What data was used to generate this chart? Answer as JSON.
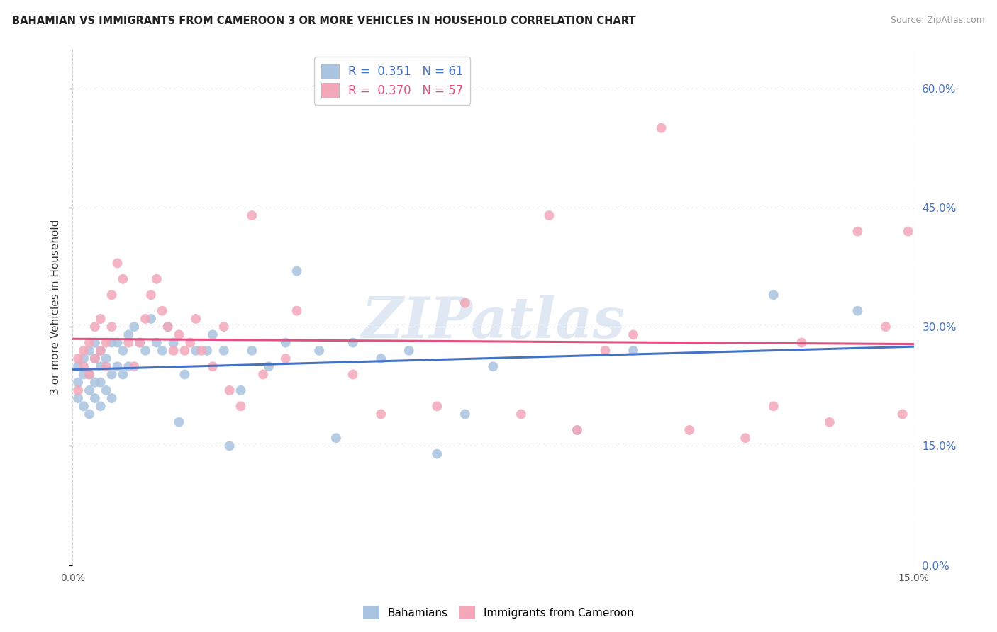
{
  "title": "BAHAMIAN VS IMMIGRANTS FROM CAMEROON 3 OR MORE VEHICLES IN HOUSEHOLD CORRELATION CHART",
  "source": "Source: ZipAtlas.com",
  "ylabel": "3 or more Vehicles in Household",
  "legend_blue_label": "Bahamians",
  "legend_pink_label": "Immigrants from Cameroon",
  "R_blue": "0.351",
  "N_blue": "61",
  "R_pink": "0.370",
  "N_pink": "57",
  "blue_color": "#a8c4e0",
  "pink_color": "#f4a7b9",
  "blue_line_color": "#4472c4",
  "pink_line_color": "#e05080",
  "watermark": "ZIPatlas",
  "xmin": 0.0,
  "xmax": 0.15,
  "ymin": 0.0,
  "ymax": 0.65,
  "blue_scatter_x": [
    0.001,
    0.001,
    0.001,
    0.002,
    0.002,
    0.002,
    0.003,
    0.003,
    0.003,
    0.003,
    0.004,
    0.004,
    0.004,
    0.004,
    0.005,
    0.005,
    0.005,
    0.005,
    0.006,
    0.006,
    0.007,
    0.007,
    0.007,
    0.008,
    0.008,
    0.009,
    0.009,
    0.01,
    0.01,
    0.011,
    0.012,
    0.013,
    0.014,
    0.015,
    0.016,
    0.017,
    0.018,
    0.019,
    0.02,
    0.022,
    0.024,
    0.025,
    0.027,
    0.028,
    0.03,
    0.032,
    0.035,
    0.038,
    0.04,
    0.044,
    0.047,
    0.05,
    0.055,
    0.06,
    0.065,
    0.07,
    0.075,
    0.09,
    0.1,
    0.125,
    0.14
  ],
  "blue_scatter_y": [
    0.21,
    0.23,
    0.25,
    0.2,
    0.24,
    0.26,
    0.19,
    0.22,
    0.24,
    0.27,
    0.21,
    0.23,
    0.26,
    0.28,
    0.2,
    0.23,
    0.25,
    0.27,
    0.22,
    0.26,
    0.21,
    0.24,
    0.28,
    0.25,
    0.28,
    0.24,
    0.27,
    0.25,
    0.29,
    0.3,
    0.28,
    0.27,
    0.31,
    0.28,
    0.27,
    0.3,
    0.28,
    0.18,
    0.24,
    0.27,
    0.27,
    0.29,
    0.27,
    0.15,
    0.22,
    0.27,
    0.25,
    0.28,
    0.37,
    0.27,
    0.16,
    0.28,
    0.26,
    0.27,
    0.14,
    0.19,
    0.25,
    0.17,
    0.27,
    0.34,
    0.32
  ],
  "pink_scatter_x": [
    0.001,
    0.001,
    0.002,
    0.002,
    0.003,
    0.003,
    0.004,
    0.004,
    0.005,
    0.005,
    0.006,
    0.006,
    0.007,
    0.007,
    0.008,
    0.009,
    0.01,
    0.011,
    0.012,
    0.013,
    0.014,
    0.015,
    0.016,
    0.017,
    0.018,
    0.019,
    0.02,
    0.021,
    0.022,
    0.023,
    0.025,
    0.027,
    0.028,
    0.03,
    0.032,
    0.034,
    0.038,
    0.04,
    0.05,
    0.055,
    0.065,
    0.07,
    0.08,
    0.085,
    0.09,
    0.095,
    0.1,
    0.105,
    0.11,
    0.12,
    0.125,
    0.13,
    0.135,
    0.14,
    0.145,
    0.148,
    0.149
  ],
  "pink_scatter_y": [
    0.22,
    0.26,
    0.25,
    0.27,
    0.24,
    0.28,
    0.26,
    0.3,
    0.27,
    0.31,
    0.25,
    0.28,
    0.3,
    0.34,
    0.38,
    0.36,
    0.28,
    0.25,
    0.28,
    0.31,
    0.34,
    0.36,
    0.32,
    0.3,
    0.27,
    0.29,
    0.27,
    0.28,
    0.31,
    0.27,
    0.25,
    0.3,
    0.22,
    0.2,
    0.44,
    0.24,
    0.26,
    0.32,
    0.24,
    0.19,
    0.2,
    0.33,
    0.19,
    0.44,
    0.17,
    0.27,
    0.29,
    0.55,
    0.17,
    0.16,
    0.2,
    0.28,
    0.18,
    0.42,
    0.3,
    0.19,
    0.42
  ]
}
